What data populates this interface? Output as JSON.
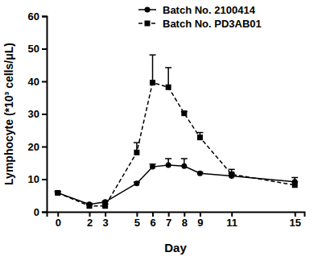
{
  "chart_data": {
    "type": "line",
    "x_label": "Day",
    "y_label": "Lymphocyte (*10³ cells/μL)",
    "x": [
      0,
      2,
      3,
      5,
      6,
      7,
      8,
      9,
      11,
      15
    ],
    "xlim": [
      -0.7,
      15.6
    ],
    "xticks": [
      0,
      2,
      3,
      5,
      6,
      7,
      8,
      9,
      11,
      15
    ],
    "ylim": [
      0,
      60
    ],
    "yticks": [
      0,
      10,
      20,
      30,
      40,
      50,
      60
    ],
    "legend": "top-right",
    "series": [
      {
        "name": "Batch No. 2100414",
        "color": "#000000",
        "marker": "circle",
        "line_style": "solid",
        "values": [
          5.8,
          2.3,
          3.0,
          8.7,
          13.8,
          14.3,
          14.0,
          11.8,
          11.0,
          9.2
        ],
        "errors": [
          0.4,
          0.3,
          0.3,
          0.4,
          0.8,
          2.0,
          2.3,
          0.4,
          0.8,
          1.3
        ]
      },
      {
        "name": "Batch No. PD3AB01",
        "color": "#000000",
        "marker": "square",
        "line_style": "dashed",
        "values": [
          5.8,
          1.8,
          1.8,
          18.2,
          39.6,
          38.2,
          30.2,
          22.8,
          11.5,
          8.2
        ],
        "errors": [
          0.3,
          0.3,
          0.6,
          3.0,
          8.5,
          6.0,
          0.5,
          1.5,
          1.5,
          1.0
        ]
      }
    ]
  }
}
